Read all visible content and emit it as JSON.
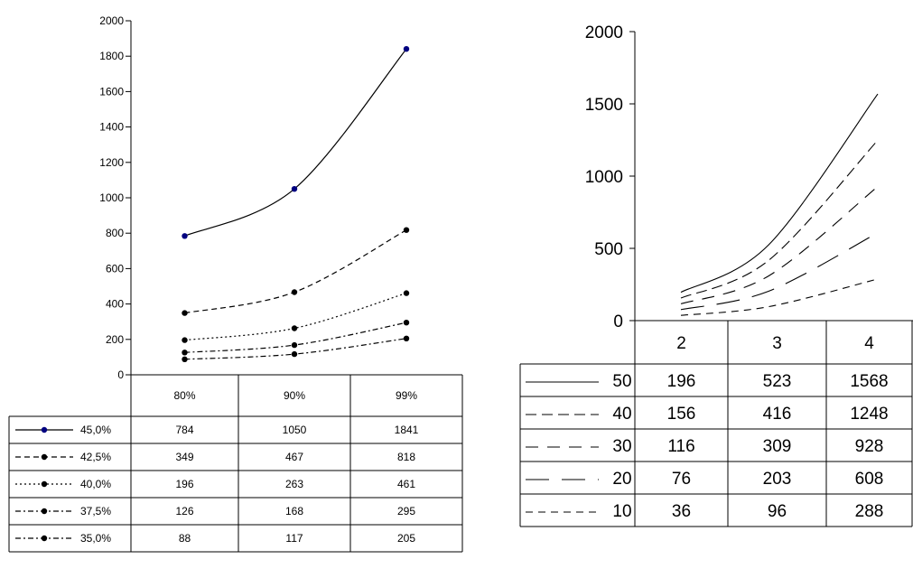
{
  "chart_data": [
    {
      "type": "line",
      "ylim": [
        0,
        2000
      ],
      "yticks": [
        0,
        200,
        400,
        600,
        800,
        1000,
        1200,
        1400,
        1600,
        1800,
        2000
      ],
      "categories": [
        "80%",
        "90%",
        "99%"
      ],
      "grid": false,
      "legend": "data-table-left",
      "series": [
        {
          "name": "45,0%",
          "values": [
            784,
            1050,
            1841
          ],
          "dash": "solid",
          "color": "#000080"
        },
        {
          "name": "42,5%",
          "values": [
            349,
            467,
            818
          ],
          "dash": "dashed",
          "color": "#000000"
        },
        {
          "name": "40,0%",
          "values": [
            196,
            263,
            461
          ],
          "dash": "dotted",
          "color": "#000000"
        },
        {
          "name": "37,5%",
          "values": [
            126,
            168,
            295
          ],
          "dash": "dashdot",
          "color": "#000000"
        },
        {
          "name": "35,0%",
          "values": [
            88,
            117,
            205
          ],
          "dash": "dashdot",
          "color": "#000000"
        }
      ]
    },
    {
      "type": "line",
      "ylim": [
        0,
        2000
      ],
      "yticks": [
        0,
        500,
        1000,
        1500,
        2000
      ],
      "categories": [
        "2",
        "3",
        "4"
      ],
      "grid": false,
      "legend": "data-table-left",
      "series": [
        {
          "name": "50",
          "values": [
            196,
            523,
            1568
          ],
          "dash": "solid"
        },
        {
          "name": "40",
          "values": [
            156,
            416,
            1248
          ],
          "dash": "longdash"
        },
        {
          "name": "30",
          "values": [
            116,
            309,
            928
          ],
          "dash": "sparse"
        },
        {
          "name": "20",
          "values": [
            76,
            203,
            608
          ],
          "dash": "longgap"
        },
        {
          "name": "10",
          "values": [
            36,
            96,
            288
          ],
          "dash": "dashed"
        }
      ]
    }
  ]
}
